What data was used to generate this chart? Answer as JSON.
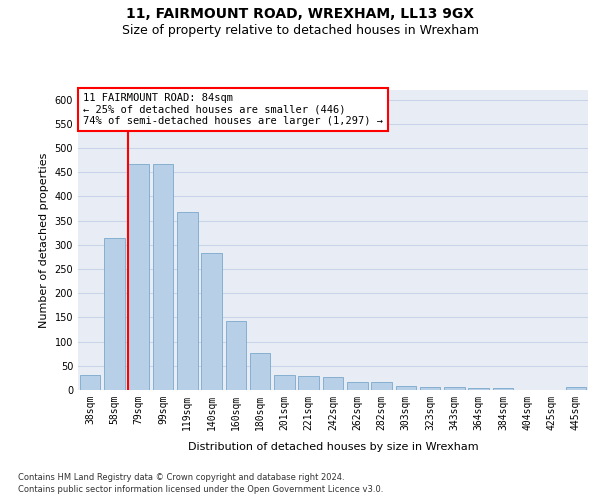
{
  "title_line1": "11, FAIRMOUNT ROAD, WREXHAM, LL13 9GX",
  "title_line2": "Size of property relative to detached houses in Wrexham",
  "xlabel": "Distribution of detached houses by size in Wrexham",
  "ylabel": "Number of detached properties",
  "categories": [
    "38sqm",
    "58sqm",
    "79sqm",
    "99sqm",
    "119sqm",
    "140sqm",
    "160sqm",
    "180sqm",
    "201sqm",
    "221sqm",
    "242sqm",
    "262sqm",
    "282sqm",
    "303sqm",
    "323sqm",
    "343sqm",
    "364sqm",
    "384sqm",
    "404sqm",
    "425sqm",
    "445sqm"
  ],
  "values": [
    31,
    315,
    468,
    468,
    368,
    284,
    143,
    76,
    32,
    29,
    27,
    16,
    16,
    8,
    7,
    6,
    5,
    5,
    0,
    0,
    6
  ],
  "bar_color": "#b8cfe8",
  "bar_edge_color": "#7aa8cc",
  "vline_color": "red",
  "annotation_text": "11 FAIRMOUNT ROAD: 84sqm\n← 25% of detached houses are smaller (446)\n74% of semi-detached houses are larger (1,297) →",
  "annotation_box_color": "white",
  "annotation_box_edge": "red",
  "ylim": [
    0,
    620
  ],
  "yticks": [
    0,
    50,
    100,
    150,
    200,
    250,
    300,
    350,
    400,
    450,
    500,
    550,
    600
  ],
  "grid_color": "#c8d4e8",
  "bg_color": "#e8edf5",
  "footer1": "Contains HM Land Registry data © Crown copyright and database right 2024.",
  "footer2": "Contains public sector information licensed under the Open Government Licence v3.0.",
  "title_fontsize": 10,
  "subtitle_fontsize": 9,
  "axis_label_fontsize": 8,
  "tick_fontsize": 7,
  "annotation_fontsize": 7.5
}
